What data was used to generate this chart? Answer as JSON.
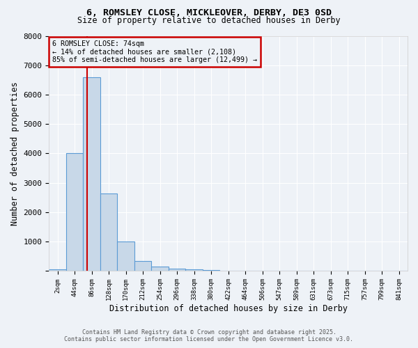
{
  "title_line1": "6, ROMSLEY CLOSE, MICKLEOVER, DERBY, DE3 0SD",
  "title_line2": "Size of property relative to detached houses in Derby",
  "xlabel": "Distribution of detached houses by size in Derby",
  "ylabel": "Number of detached properties",
  "categories": [
    "2sqm",
    "44sqm",
    "86sqm",
    "128sqm",
    "170sqm",
    "212sqm",
    "254sqm",
    "296sqm",
    "338sqm",
    "380sqm",
    "422sqm",
    "464sqm",
    "506sqm",
    "547sqm",
    "589sqm",
    "631sqm",
    "673sqm",
    "715sqm",
    "757sqm",
    "799sqm",
    "841sqm"
  ],
  "values": [
    50,
    4000,
    6600,
    2650,
    1000,
    350,
    150,
    80,
    50,
    30,
    20,
    0,
    0,
    0,
    0,
    0,
    0,
    0,
    0,
    0,
    0
  ],
  "bar_color": "#c8d8e8",
  "bar_edgecolor": "#5b9bd5",
  "ylim": [
    0,
    8000
  ],
  "yticks": [
    0,
    1000,
    2000,
    3000,
    4000,
    5000,
    6000,
    7000,
    8000
  ],
  "property_line_x": 1.72,
  "property_line_color": "#cc0000",
  "annotation_line1": "6 ROMSLEY CLOSE: 74sqm",
  "annotation_line2": "← 14% of detached houses are smaller (2,108)",
  "annotation_line3": "85% of semi-detached houses are larger (12,499) →",
  "annotation_box_color": "#cc0000",
  "background_color": "#eef2f7",
  "grid_color": "#ffffff",
  "footer_line1": "Contains HM Land Registry data © Crown copyright and database right 2025.",
  "footer_line2": "Contains public sector information licensed under the Open Government Licence v3.0."
}
